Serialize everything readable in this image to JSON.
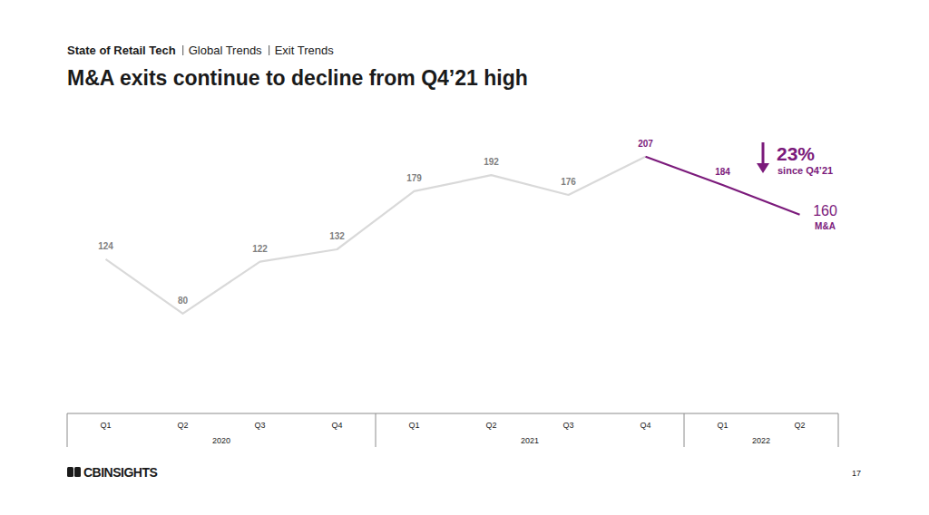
{
  "chart_data": {
    "type": "line",
    "breadcrumb": [
      "State of Retail Tech",
      "Global Trends",
      "Exit Trends"
    ],
    "title": "M&A exits continue to decline from Q4’21 high",
    "categories": [
      "Q1",
      "Q2",
      "Q3",
      "Q4",
      "Q1",
      "Q2",
      "Q3",
      "Q4",
      "Q1",
      "Q2"
    ],
    "x_groups": [
      "2020",
      "2020",
      "2020",
      "2020",
      "2021",
      "2021",
      "2021",
      "2021",
      "2022",
      "2022"
    ],
    "series": [
      {
        "name": "M&A",
        "values": [
          124,
          80,
          122,
          132,
          179,
          192,
          176,
          207,
          184,
          160
        ],
        "colors": [
          "#d9d9d9",
          "#d9d9d9",
          "#d9d9d9",
          "#d9d9d9",
          "#d9d9d9",
          "#d9d9d9",
          "#d9d9d9",
          "#7b1a7b",
          "#7b1a7b",
          "#7b1a7b"
        ]
      }
    ],
    "ylim": [
      0,
      220
    ],
    "grid": false,
    "data_labels": true,
    "tick_labels": "x",
    "annotations": [
      {
        "text": "23%"
      },
      {
        "text": "since Q4’21"
      }
    ],
    "logo": "CBINSIGHTS",
    "page_number": "17"
  }
}
